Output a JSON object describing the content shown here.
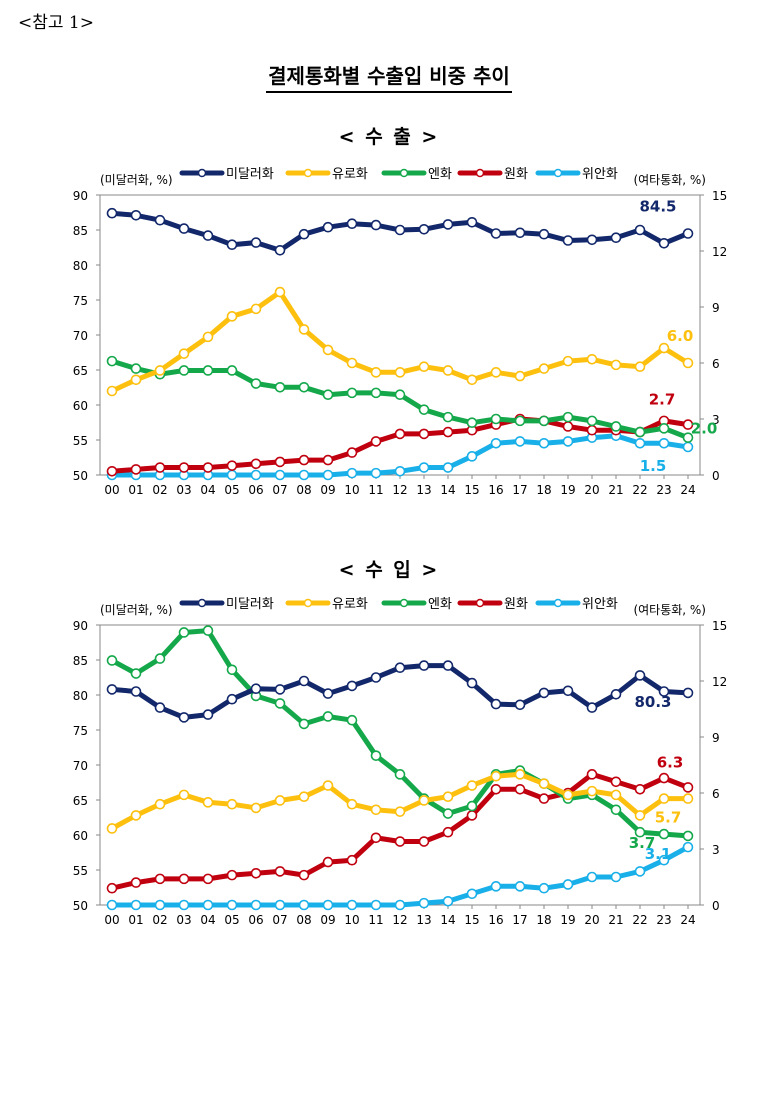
{
  "ref_label": "<참고 1>",
  "page_title": "결제통화별 수출입 비중 추이",
  "colors": {
    "미달러화": "#13286b",
    "유로화": "#fdc00f",
    "엔화": "#14a84b",
    "원화": "#c0000f",
    "위안화": "#19afe8"
  },
  "chart_data": [
    {
      "type": "line",
      "title": "< 수   출 >",
      "categories": [
        "00",
        "01",
        "02",
        "03",
        "04",
        "05",
        "06",
        "07",
        "08",
        "09",
        "10",
        "11",
        "12",
        "13",
        "14",
        "15",
        "16",
        "17",
        "18",
        "19",
        "20",
        "21",
        "22",
        "23",
        "24"
      ],
      "ylabel_left": "(미달러화, %)",
      "ylabel_right": "(여타통화, %)",
      "ylim_left": [
        50,
        90
      ],
      "yticks_left": [
        50,
        55,
        60,
        65,
        70,
        75,
        80,
        85,
        90
      ],
      "ylim_right": [
        0,
        15
      ],
      "yticks_right": [
        0,
        3,
        6,
        9,
        12,
        15
      ],
      "legend": [
        "미달러화",
        "유로화",
        "엔화",
        "원화",
        "위안화"
      ],
      "series": [
        {
          "name": "미달러화",
          "axis": "left",
          "values": [
            87.4,
            87.1,
            86.4,
            85.2,
            84.2,
            82.9,
            83.2,
            82.1,
            84.4,
            85.4,
            85.9,
            85.7,
            85.0,
            85.1,
            85.8,
            86.1,
            84.5,
            84.6,
            84.4,
            83.5,
            83.6,
            83.9,
            85.0,
            83.1,
            84.5
          ],
          "end_label": "84.5"
        },
        {
          "name": "유로화",
          "axis": "right",
          "values": [
            4.5,
            5.1,
            5.6,
            6.5,
            7.4,
            8.5,
            8.9,
            9.8,
            7.8,
            6.7,
            6.0,
            5.5,
            5.5,
            5.8,
            5.6,
            5.1,
            5.5,
            5.3,
            5.7,
            6.1,
            6.2,
            5.9,
            5.8,
            6.8,
            6.0
          ],
          "end_label": "6.0"
        },
        {
          "name": "엔화",
          "axis": "right",
          "values": [
            6.1,
            5.7,
            5.4,
            5.6,
            5.6,
            5.6,
            4.9,
            4.7,
            4.7,
            4.3,
            4.4,
            4.4,
            4.3,
            3.5,
            3.1,
            2.8,
            3.0,
            2.9,
            2.9,
            3.1,
            2.9,
            2.6,
            2.3,
            2.5,
            2.0
          ],
          "end_label": "2.0"
        },
        {
          "name": "원화",
          "axis": "right",
          "values": [
            0.2,
            0.3,
            0.4,
            0.4,
            0.4,
            0.5,
            0.6,
            0.7,
            0.8,
            0.8,
            1.2,
            1.8,
            2.2,
            2.2,
            2.3,
            2.4,
            2.7,
            3.0,
            2.9,
            2.6,
            2.4,
            2.4,
            2.3,
            2.9,
            2.7
          ],
          "end_label": "2.7"
        },
        {
          "name": "위안화",
          "axis": "right",
          "values": [
            0.0,
            0.0,
            0.0,
            0.0,
            0.0,
            0.0,
            0.0,
            0.0,
            0.0,
            0.0,
            0.1,
            0.1,
            0.2,
            0.4,
            0.4,
            1.0,
            1.7,
            1.8,
            1.7,
            1.8,
            2.0,
            2.1,
            1.7,
            1.7,
            1.5
          ],
          "end_label": "1.5"
        }
      ]
    },
    {
      "type": "line",
      "title": "< 수   입 >",
      "categories": [
        "00",
        "01",
        "02",
        "03",
        "04",
        "05",
        "06",
        "07",
        "08",
        "09",
        "10",
        "11",
        "12",
        "13",
        "14",
        "15",
        "16",
        "17",
        "18",
        "19",
        "20",
        "21",
        "22",
        "23",
        "24"
      ],
      "ylabel_left": "(미달러화, %)",
      "ylabel_right": "(여타통화, %)",
      "ylim_left": [
        50,
        90
      ],
      "yticks_left": [
        50,
        55,
        60,
        65,
        70,
        75,
        80,
        85,
        90
      ],
      "ylim_right": [
        0,
        15
      ],
      "yticks_right": [
        0,
        3,
        6,
        9,
        12,
        15
      ],
      "legend": [
        "미달러화",
        "유로화",
        "엔화",
        "원화",
        "위안화"
      ],
      "series": [
        {
          "name": "미달러화",
          "axis": "left",
          "values": [
            80.8,
            80.5,
            78.2,
            76.8,
            77.2,
            79.4,
            80.9,
            80.8,
            82.0,
            80.2,
            81.3,
            82.5,
            83.9,
            84.2,
            84.2,
            81.7,
            78.7,
            78.6,
            80.3,
            80.6,
            78.2,
            80.1,
            82.8,
            80.5,
            80.3
          ],
          "end_label": "80.3"
        },
        {
          "name": "유로화",
          "axis": "right",
          "values": [
            4.1,
            4.8,
            5.4,
            5.9,
            5.5,
            5.4,
            5.2,
            5.6,
            5.8,
            6.4,
            5.4,
            5.1,
            5.0,
            5.6,
            5.8,
            6.4,
            6.9,
            7.0,
            6.5,
            5.9,
            6.1,
            5.9,
            4.8,
            5.7,
            5.7
          ],
          "end_label": "5.7"
        },
        {
          "name": "엔화",
          "axis": "right",
          "values": [
            13.1,
            12.4,
            13.2,
            14.6,
            14.7,
            12.6,
            11.2,
            10.8,
            9.7,
            10.1,
            9.9,
            8.0,
            7.0,
            5.7,
            4.9,
            5.3,
            7.0,
            7.2,
            6.5,
            5.7,
            5.9,
            5.1,
            3.9,
            3.8,
            3.7
          ],
          "end_label": "3.7"
        },
        {
          "name": "원화",
          "axis": "right",
          "values": [
            0.9,
            1.2,
            1.4,
            1.4,
            1.4,
            1.6,
            1.7,
            1.8,
            1.6,
            2.3,
            2.4,
            3.6,
            3.4,
            3.4,
            3.9,
            4.8,
            6.2,
            6.2,
            5.7,
            6.0,
            7.0,
            6.6,
            6.2,
            6.8,
            6.3
          ],
          "end_label": "6.3"
        },
        {
          "name": "위안화",
          "axis": "right",
          "values": [
            0.0,
            0.0,
            0.0,
            0.0,
            0.0,
            0.0,
            0.0,
            0.0,
            0.0,
            0.0,
            0.0,
            0.0,
            0.0,
            0.1,
            0.2,
            0.6,
            1.0,
            1.0,
            0.9,
            1.1,
            1.5,
            1.5,
            1.8,
            2.4,
            3.1
          ],
          "end_label": "3.1"
        }
      ]
    }
  ]
}
